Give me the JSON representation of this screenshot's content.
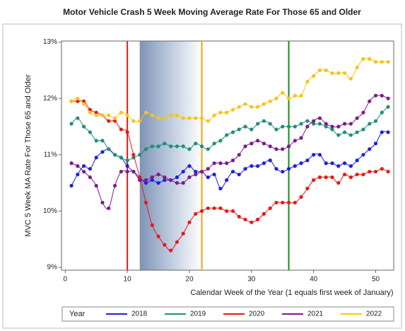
{
  "chart_data": {
    "type": "scatter",
    "title": "Motor Vehicle Crash 5 Week Moving Average Rate For Those 65 and Older",
    "x_label": "Calendar Week of the Year (1 equals first week of January)",
    "y_label": "MVC 5 Week MA Rate For Those 65 and Older",
    "legend_title": "Year",
    "x": [
      1,
      2,
      3,
      4,
      5,
      6,
      7,
      8,
      9,
      10,
      11,
      12,
      13,
      14,
      15,
      16,
      17,
      18,
      19,
      20,
      21,
      22,
      23,
      24,
      25,
      26,
      27,
      28,
      29,
      30,
      31,
      32,
      33,
      34,
      35,
      36,
      37,
      38,
      39,
      40,
      41,
      42,
      43,
      44,
      45,
      46,
      47,
      48,
      49,
      50,
      51,
      52
    ],
    "series": [
      {
        "name": "2018",
        "color": "#1f1fe0",
        "values": [
          10.45,
          10.65,
          10.8,
          10.75,
          10.95,
          11.05,
          11.1,
          11.0,
          10.95,
          10.8,
          10.7,
          10.6,
          10.5,
          10.55,
          10.5,
          10.55,
          10.55,
          10.6,
          10.7,
          10.8,
          10.7,
          10.7,
          10.6,
          10.65,
          10.4,
          10.55,
          10.7,
          10.65,
          10.75,
          10.8,
          10.8,
          10.85,
          10.9,
          10.75,
          10.7,
          10.75,
          10.8,
          10.85,
          10.9,
          11.0,
          11.0,
          10.85,
          10.85,
          10.8,
          10.85,
          10.8,
          10.9,
          11.0,
          11.1,
          11.2,
          11.4,
          11.4
        ]
      },
      {
        "name": "2019",
        "color": "#1f8f7a",
        "values": [
          11.55,
          11.65,
          11.5,
          11.4,
          11.25,
          11.25,
          11.1,
          11.0,
          10.95,
          10.9,
          10.95,
          11.0,
          11.1,
          11.15,
          11.15,
          11.2,
          11.15,
          11.15,
          11.15,
          11.1,
          11.2,
          11.15,
          11.1,
          11.2,
          11.25,
          11.35,
          11.4,
          11.45,
          11.5,
          11.45,
          11.55,
          11.6,
          11.55,
          11.45,
          11.5,
          11.5,
          11.5,
          11.55,
          11.6,
          11.55,
          11.55,
          11.5,
          11.45,
          11.35,
          11.4,
          11.35,
          11.4,
          11.45,
          11.55,
          11.6,
          11.75,
          11.85
        ]
      },
      {
        "name": "2020",
        "color": "#e81818",
        "values": [
          11.95,
          11.95,
          11.95,
          11.8,
          11.75,
          11.7,
          11.6,
          11.6,
          11.45,
          11.4,
          11.0,
          10.6,
          10.15,
          9.75,
          9.55,
          9.4,
          9.3,
          9.45,
          9.6,
          9.8,
          9.95,
          10.0,
          10.05,
          10.05,
          10.05,
          10.0,
          10.0,
          9.9,
          9.85,
          9.8,
          9.85,
          9.95,
          10.05,
          10.15,
          10.15,
          10.15,
          10.15,
          10.25,
          10.4,
          10.55,
          10.6,
          10.6,
          10.6,
          10.5,
          10.65,
          10.6,
          10.65,
          10.65,
          10.7,
          10.7,
          10.75,
          10.7
        ]
      },
      {
        "name": "2021",
        "color": "#7d1a8c",
        "values": [
          10.85,
          10.8,
          10.7,
          10.6,
          10.45,
          10.15,
          10.05,
          10.45,
          10.7,
          10.7,
          10.7,
          10.55,
          10.55,
          10.6,
          10.65,
          10.6,
          10.55,
          10.5,
          10.5,
          10.6,
          10.65,
          10.7,
          10.75,
          10.85,
          10.85,
          10.85,
          10.9,
          11.0,
          11.15,
          11.2,
          11.25,
          11.2,
          11.15,
          11.1,
          11.1,
          11.15,
          11.25,
          11.3,
          11.5,
          11.6,
          11.65,
          11.55,
          11.5,
          11.5,
          11.55,
          11.55,
          11.65,
          11.75,
          11.95,
          12.05,
          12.05,
          12.0
        ]
      },
      {
        "name": "2022",
        "color": "#f5c518",
        "values": [
          11.95,
          12.0,
          11.9,
          11.75,
          11.7,
          11.7,
          11.7,
          11.65,
          11.75,
          11.7,
          11.6,
          11.6,
          11.75,
          11.7,
          11.65,
          11.65,
          11.7,
          11.7,
          11.65,
          11.65,
          11.65,
          11.65,
          11.6,
          11.7,
          11.75,
          11.75,
          11.8,
          11.85,
          11.9,
          11.85,
          11.85,
          11.9,
          11.95,
          12.0,
          12.1,
          12.0,
          12.05,
          12.05,
          12.3,
          12.4,
          12.5,
          12.5,
          12.45,
          12.45,
          12.45,
          12.35,
          12.55,
          12.7,
          12.7,
          12.65,
          12.65,
          12.65
        ]
      }
    ],
    "reference_lines": [
      {
        "x": 10,
        "color": "#e81818"
      },
      {
        "x": 22,
        "color": "#f5a300"
      },
      {
        "x": 36,
        "color": "#1a8a1a"
      }
    ],
    "shaded_region": [
      12,
      22
    ],
    "xlim": [
      -0.6,
      52.9
    ],
    "xticks": [
      0,
      10,
      20,
      30,
      40,
      50
    ],
    "ylim": [
      8.95,
      13.02
    ],
    "yticks": [
      {
        "value": 9,
        "label": "9%"
      },
      {
        "value": 10,
        "label": "10%"
      },
      {
        "value": 11,
        "label": "11%"
      },
      {
        "value": 12,
        "label": "12%"
      },
      {
        "value": 13,
        "label": "13%"
      }
    ]
  }
}
